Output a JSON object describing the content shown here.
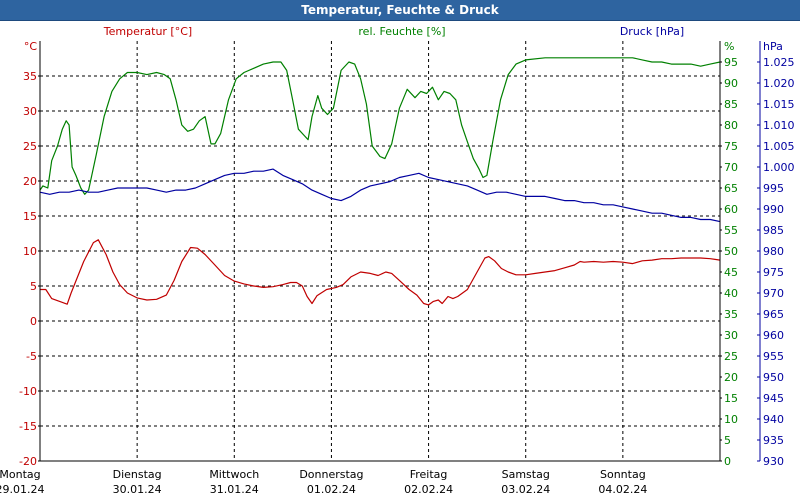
{
  "title": "Temperatur, Feuchte & Druck",
  "chart_data": {
    "type": "line",
    "title": "Temperatur, Feuchte & Druck",
    "grid": true,
    "colors": {
      "temp": "#c00000",
      "hum": "#008000",
      "press": "#0000a0"
    },
    "axes": {
      "temp": {
        "label": "Temperatur [°C]",
        "unit": "°C",
        "min": -20,
        "max": 40,
        "ticks": [
          -20,
          -15,
          -10,
          -5,
          0,
          5,
          10,
          15,
          20,
          25,
          30,
          35
        ]
      },
      "hum": {
        "label": "rel. Feuchte [%]",
        "unit": "%",
        "min": 0,
        "max": 100,
        "ticks": [
          0,
          5,
          10,
          15,
          20,
          25,
          30,
          35,
          40,
          45,
          50,
          55,
          60,
          65,
          70,
          75,
          80,
          85,
          90,
          95
        ]
      },
      "press": {
        "label": "Druck [hPa]",
        "unit": "hPa",
        "min": 930,
        "max": 1030,
        "ticks": [
          "930",
          "935",
          "940",
          "945",
          "950",
          "955",
          "960",
          "965",
          "970",
          "975",
          "980",
          "985",
          "990",
          "995",
          "1.000",
          "1.005",
          "1.010",
          "1.015",
          "1.020",
          "1.025"
        ]
      }
    },
    "x_ticks": [
      {
        "day": "Montag",
        "date": "29.01.24"
      },
      {
        "day": "Dienstag",
        "date": "30.01.24"
      },
      {
        "day": "Mittwoch",
        "date": "31.01.24"
      },
      {
        "day": "Donnerstag",
        "date": "01.02.24"
      },
      {
        "day": "Freitag",
        "date": "02.02.24"
      },
      {
        "day": "Samstag",
        "date": "03.02.24"
      },
      {
        "day": "Sonntag",
        "date": "04.02.24"
      }
    ],
    "x_range_days": [
      0,
      7
    ],
    "series": [
      {
        "name": "Temperatur [°C]",
        "axis": "temp",
        "points": [
          [
            0,
            4.5
          ],
          [
            0.06,
            4.5
          ],
          [
            0.12,
            3.2
          ],
          [
            0.22,
            2.7
          ],
          [
            0.28,
            2.4
          ],
          [
            0.32,
            4.0
          ],
          [
            0.45,
            8.5
          ],
          [
            0.55,
            11.2
          ],
          [
            0.6,
            11.6
          ],
          [
            0.68,
            9.5
          ],
          [
            0.75,
            7.0
          ],
          [
            0.82,
            5.2
          ],
          [
            0.9,
            4.0
          ],
          [
            1.0,
            3.3
          ],
          [
            1.1,
            3.0
          ],
          [
            1.2,
            3.1
          ],
          [
            1.3,
            3.7
          ],
          [
            1.38,
            5.8
          ],
          [
            1.46,
            8.5
          ],
          [
            1.55,
            10.5
          ],
          [
            1.62,
            10.4
          ],
          [
            1.7,
            9.5
          ],
          [
            1.8,
            8.0
          ],
          [
            1.9,
            6.5
          ],
          [
            2.0,
            5.7
          ],
          [
            2.1,
            5.3
          ],
          [
            2.2,
            5.0
          ],
          [
            2.3,
            4.8
          ],
          [
            2.4,
            4.9
          ],
          [
            2.5,
            5.2
          ],
          [
            2.58,
            5.5
          ],
          [
            2.64,
            5.5
          ],
          [
            2.7,
            5.0
          ],
          [
            2.75,
            3.5
          ],
          [
            2.8,
            2.5
          ],
          [
            2.85,
            3.6
          ],
          [
            2.95,
            4.5
          ],
          [
            3.05,
            4.8
          ],
          [
            3.12,
            5.2
          ],
          [
            3.2,
            6.3
          ],
          [
            3.3,
            7.0
          ],
          [
            3.4,
            6.8
          ],
          [
            3.48,
            6.5
          ],
          [
            3.56,
            7.0
          ],
          [
            3.62,
            6.8
          ],
          [
            3.7,
            5.8
          ],
          [
            3.8,
            4.5
          ],
          [
            3.88,
            3.7
          ],
          [
            3.95,
            2.5
          ],
          [
            4.0,
            2.3
          ],
          [
            4.05,
            2.8
          ],
          [
            4.1,
            3.0
          ],
          [
            4.14,
            2.5
          ],
          [
            4.2,
            3.5
          ],
          [
            4.25,
            3.2
          ],
          [
            4.3,
            3.5
          ],
          [
            4.4,
            4.5
          ],
          [
            4.5,
            7.0
          ],
          [
            4.58,
            9.0
          ],
          [
            4.62,
            9.2
          ],
          [
            4.68,
            8.6
          ],
          [
            4.75,
            7.5
          ],
          [
            4.82,
            7.0
          ],
          [
            4.9,
            6.6
          ],
          [
            5.0,
            6.6
          ],
          [
            5.1,
            6.8
          ],
          [
            5.2,
            7.0
          ],
          [
            5.3,
            7.2
          ],
          [
            5.4,
            7.6
          ],
          [
            5.5,
            8.0
          ],
          [
            5.56,
            8.5
          ],
          [
            5.6,
            8.4
          ],
          [
            5.7,
            8.5
          ],
          [
            5.8,
            8.4
          ],
          [
            5.9,
            8.5
          ],
          [
            6.0,
            8.4
          ],
          [
            6.1,
            8.2
          ],
          [
            6.2,
            8.6
          ],
          [
            6.3,
            8.7
          ],
          [
            6.4,
            8.9
          ],
          [
            6.5,
            8.9
          ],
          [
            6.6,
            9.0
          ],
          [
            6.7,
            9.0
          ],
          [
            6.8,
            9.0
          ],
          [
            6.9,
            8.9
          ],
          [
            6.95,
            8.8
          ],
          [
            7.0,
            8.7
          ]
        ]
      },
      {
        "name": "rel. Feuchte [%]",
        "axis": "hum",
        "points": [
          [
            0,
            64.5
          ],
          [
            0.03,
            65.5
          ],
          [
            0.08,
            65.0
          ],
          [
            0.12,
            71.5
          ],
          [
            0.18,
            75.0
          ],
          [
            0.23,
            79.0
          ],
          [
            0.27,
            81.0
          ],
          [
            0.3,
            80.0
          ],
          [
            0.33,
            70.0
          ],
          [
            0.37,
            68.0
          ],
          [
            0.42,
            65.0
          ],
          [
            0.46,
            63.5
          ],
          [
            0.5,
            64.5
          ],
          [
            0.58,
            73.0
          ],
          [
            0.66,
            82.0
          ],
          [
            0.74,
            88.0
          ],
          [
            0.82,
            91.0
          ],
          [
            0.9,
            92.5
          ],
          [
            1.0,
            92.5
          ],
          [
            1.1,
            92.0
          ],
          [
            1.2,
            92.5
          ],
          [
            1.28,
            92.0
          ],
          [
            1.34,
            91.0
          ],
          [
            1.4,
            86.0
          ],
          [
            1.46,
            80.0
          ],
          [
            1.52,
            78.5
          ],
          [
            1.58,
            79.0
          ],
          [
            1.64,
            81.0
          ],
          [
            1.7,
            82.0
          ],
          [
            1.76,
            75.5
          ],
          [
            1.8,
            75.5
          ],
          [
            1.86,
            78.0
          ],
          [
            1.94,
            86.0
          ],
          [
            2.02,
            91.0
          ],
          [
            2.1,
            92.5
          ],
          [
            2.2,
            93.5
          ],
          [
            2.3,
            94.5
          ],
          [
            2.4,
            95.0
          ],
          [
            2.48,
            95.0
          ],
          [
            2.54,
            93.0
          ],
          [
            2.6,
            86.0
          ],
          [
            2.66,
            79.0
          ],
          [
            2.72,
            77.5
          ],
          [
            2.76,
            76.5
          ],
          [
            2.8,
            82.0
          ],
          [
            2.86,
            87.0
          ],
          [
            2.9,
            84.0
          ],
          [
            2.96,
            82.5
          ],
          [
            3.02,
            84.0
          ],
          [
            3.1,
            93.0
          ],
          [
            3.18,
            95.0
          ],
          [
            3.24,
            94.5
          ],
          [
            3.3,
            91.0
          ],
          [
            3.36,
            85.0
          ],
          [
            3.42,
            75.0
          ],
          [
            3.5,
            72.5
          ],
          [
            3.55,
            72.0
          ],
          [
            3.62,
            75.5
          ],
          [
            3.7,
            84.0
          ],
          [
            3.78,
            88.5
          ],
          [
            3.86,
            86.5
          ],
          [
            3.92,
            88.0
          ],
          [
            3.98,
            87.5
          ],
          [
            4.04,
            89.0
          ],
          [
            4.1,
            86.0
          ],
          [
            4.16,
            88.0
          ],
          [
            4.22,
            87.5
          ],
          [
            4.28,
            86.0
          ],
          [
            4.34,
            80.0
          ],
          [
            4.4,
            76.0
          ],
          [
            4.46,
            72.0
          ],
          [
            4.52,
            69.5
          ],
          [
            4.56,
            67.5
          ],
          [
            4.6,
            68.0
          ],
          [
            4.66,
            76.0
          ],
          [
            4.74,
            86.0
          ],
          [
            4.82,
            92.0
          ],
          [
            4.9,
            94.5
          ],
          [
            5.0,
            95.5
          ],
          [
            5.2,
            96.0
          ],
          [
            5.4,
            96.0
          ],
          [
            5.6,
            96.0
          ],
          [
            5.8,
            96.0
          ],
          [
            6.0,
            96.0
          ],
          [
            6.1,
            96.0
          ],
          [
            6.2,
            95.5
          ],
          [
            6.3,
            95.0
          ],
          [
            6.4,
            95.0
          ],
          [
            6.5,
            94.5
          ],
          [
            6.6,
            94.5
          ],
          [
            6.7,
            94.5
          ],
          [
            6.8,
            94.0
          ],
          [
            6.9,
            94.5
          ],
          [
            7.0,
            95.0
          ]
        ]
      },
      {
        "name": "Druck [hPa]",
        "axis": "press",
        "points": [
          [
            0,
            994.0
          ],
          [
            0.1,
            993.5
          ],
          [
            0.2,
            994.0
          ],
          [
            0.3,
            994.0
          ],
          [
            0.4,
            994.5
          ],
          [
            0.5,
            994.0
          ],
          [
            0.6,
            994.0
          ],
          [
            0.7,
            994.5
          ],
          [
            0.8,
            995.0
          ],
          [
            0.9,
            995.0
          ],
          [
            1.0,
            995.0
          ],
          [
            1.1,
            995.0
          ],
          [
            1.2,
            994.5
          ],
          [
            1.3,
            994.0
          ],
          [
            1.4,
            994.5
          ],
          [
            1.5,
            994.5
          ],
          [
            1.6,
            995.0
          ],
          [
            1.7,
            996.0
          ],
          [
            1.8,
            997.0
          ],
          [
            1.9,
            998.0
          ],
          [
            2.0,
            998.5
          ],
          [
            2.1,
            998.5
          ],
          [
            2.2,
            999.0
          ],
          [
            2.3,
            999.0
          ],
          [
            2.4,
            999.5
          ],
          [
            2.5,
            998.0
          ],
          [
            2.6,
            997.0
          ],
          [
            2.7,
            996.0
          ],
          [
            2.8,
            994.5
          ],
          [
            2.9,
            993.5
          ],
          [
            3.0,
            992.5
          ],
          [
            3.1,
            992.0
          ],
          [
            3.2,
            993.0
          ],
          [
            3.3,
            994.5
          ],
          [
            3.4,
            995.5
          ],
          [
            3.5,
            996.0
          ],
          [
            3.6,
            996.5
          ],
          [
            3.7,
            997.5
          ],
          [
            3.8,
            998.0
          ],
          [
            3.9,
            998.5
          ],
          [
            4.0,
            997.5
          ],
          [
            4.1,
            997.0
          ],
          [
            4.2,
            996.5
          ],
          [
            4.3,
            996.0
          ],
          [
            4.4,
            995.5
          ],
          [
            4.5,
            994.5
          ],
          [
            4.6,
            993.5
          ],
          [
            4.7,
            994.0
          ],
          [
            4.8,
            994.0
          ],
          [
            4.9,
            993.5
          ],
          [
            5.0,
            993.0
          ],
          [
            5.1,
            993.0
          ],
          [
            5.2,
            993.0
          ],
          [
            5.3,
            992.5
          ],
          [
            5.4,
            992.0
          ],
          [
            5.5,
            992.0
          ],
          [
            5.6,
            991.5
          ],
          [
            5.7,
            991.5
          ],
          [
            5.8,
            991.0
          ],
          [
            5.9,
            991.0
          ],
          [
            6.0,
            990.5
          ],
          [
            6.1,
            990.0
          ],
          [
            6.2,
            989.5
          ],
          [
            6.3,
            989.0
          ],
          [
            6.4,
            989.0
          ],
          [
            6.5,
            988.5
          ],
          [
            6.6,
            988.0
          ],
          [
            6.7,
            988.0
          ],
          [
            6.8,
            987.5
          ],
          [
            6.9,
            987.5
          ],
          [
            7.0,
            987.0
          ]
        ]
      }
    ]
  }
}
